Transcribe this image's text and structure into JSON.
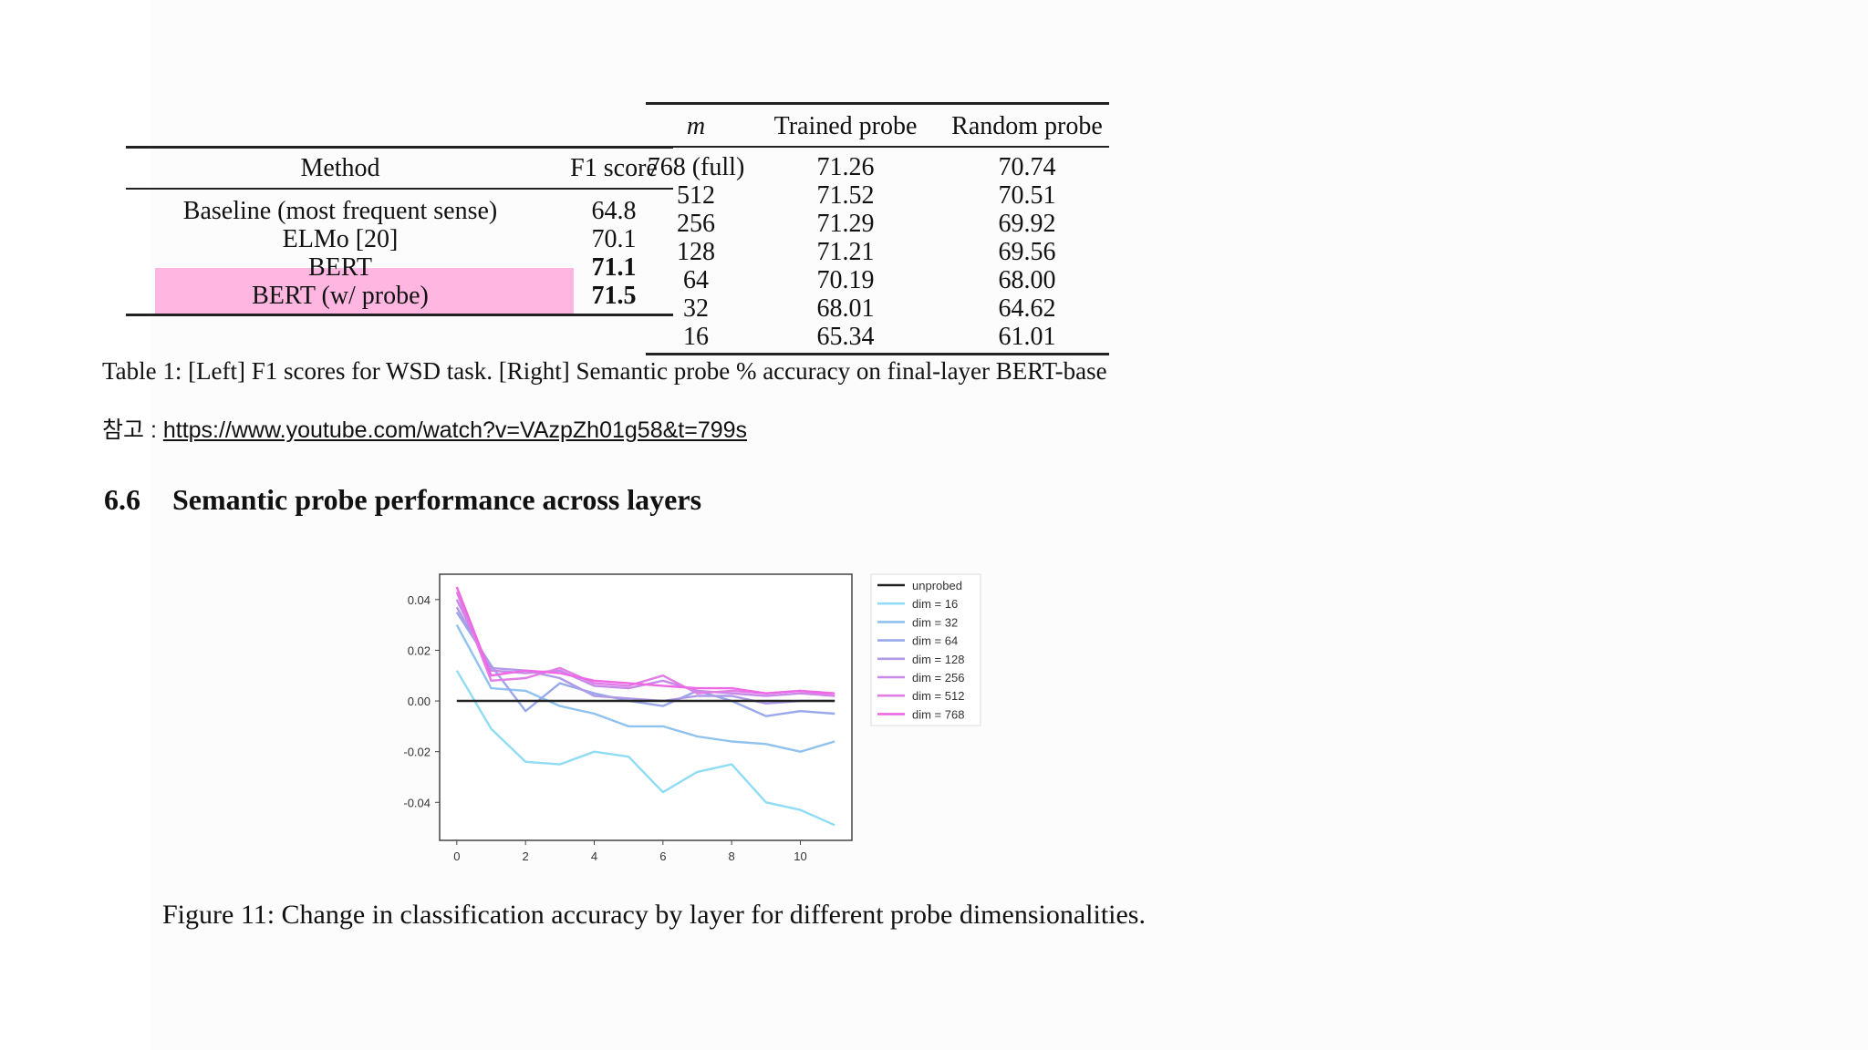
{
  "left_table": {
    "headers": [
      "Method",
      "F1 score"
    ],
    "rows": [
      {
        "method": "Baseline (most frequent sense)",
        "f1": "64.8",
        "bold": false
      },
      {
        "method": "ELMo [20]",
        "f1": "70.1",
        "bold": false
      },
      {
        "method": "BERT",
        "f1": "71.1",
        "bold": true
      },
      {
        "method": "BERT (w/ probe)",
        "f1": "71.5",
        "bold": true
      }
    ],
    "highlight_color": "#ffb6e1"
  },
  "right_table": {
    "headers": [
      "m",
      "Trained probe",
      "Random probe"
    ],
    "rows": [
      [
        "768 (full)",
        "71.26",
        "70.74"
      ],
      [
        "512",
        "71.52",
        "70.51"
      ],
      [
        "256",
        "71.29",
        "69.92"
      ],
      [
        "128",
        "71.21",
        "69.56"
      ],
      [
        "64",
        "70.19",
        "68.00"
      ],
      [
        "32",
        "68.01",
        "64.62"
      ],
      [
        "16",
        "65.34",
        "61.01"
      ]
    ]
  },
  "table_caption": "Table 1: [Left] F1 scores for WSD task. [Right] Semantic probe % accuracy on final-layer BERT-base",
  "reference": {
    "label": "참고 : ",
    "url": "https://www.youtube.com/watch?v=VAzpZh01g58&t=799s"
  },
  "section": {
    "number": "6.6",
    "title": "Semantic probe performance across layers"
  },
  "chart_data": {
    "type": "line",
    "title": "",
    "xlabel": "",
    "ylabel": "",
    "x": [
      0,
      1,
      2,
      3,
      4,
      5,
      6,
      7,
      8,
      9,
      10,
      11
    ],
    "xticks": [
      0,
      2,
      4,
      6,
      8,
      10
    ],
    "xtick_labels": [
      "0",
      "2",
      "4",
      "6",
      "8",
      "10"
    ],
    "yticks": [
      -0.04,
      -0.02,
      0.0,
      0.02,
      0.04
    ],
    "ytick_labels": [
      "-0.04",
      "-0.02",
      "0.00",
      "0.02",
      "0.04"
    ],
    "xlim": [
      -0.5,
      11.5
    ],
    "ylim": [
      -0.055,
      0.05
    ],
    "legend_position": "outside-right",
    "series": [
      {
        "name": "unprobed",
        "color": "#222222",
        "values": [
          0,
          0,
          0,
          0,
          0,
          0,
          0,
          0,
          0,
          0,
          0,
          0
        ]
      },
      {
        "name": "dim = 16",
        "color": "#8fdcf4",
        "values": [
          0.012,
          -0.011,
          -0.024,
          -0.025,
          -0.02,
          -0.022,
          -0.036,
          -0.028,
          -0.025,
          -0.04,
          -0.043,
          -0.049
        ]
      },
      {
        "name": "dim = 32",
        "color": "#8fc2ee",
        "values": [
          0.03,
          0.005,
          0.004,
          -0.002,
          -0.005,
          -0.01,
          -0.01,
          -0.014,
          -0.016,
          -0.017,
          -0.02,
          -0.016
        ]
      },
      {
        "name": "dim = 64",
        "color": "#98a8ea",
        "values": [
          0.035,
          0.014,
          -0.004,
          0.007,
          0.003,
          0.0,
          -0.002,
          0.004,
          0.0,
          -0.006,
          -0.004,
          -0.005
        ]
      },
      {
        "name": "dim = 128",
        "color": "#ae9ae8",
        "values": [
          0.037,
          0.013,
          0.012,
          0.009,
          0.002,
          0.001,
          0.0,
          0.002,
          0.002,
          -0.001,
          0.0,
          0.0
        ]
      },
      {
        "name": "dim = 256",
        "color": "#c88ae8",
        "values": [
          0.04,
          0.012,
          0.011,
          0.012,
          0.006,
          0.005,
          0.008,
          0.004,
          0.003,
          0.002,
          0.003,
          0.002
        ]
      },
      {
        "name": "dim = 512",
        "color": "#e07ee6",
        "values": [
          0.043,
          0.008,
          0.009,
          0.013,
          0.007,
          0.006,
          0.01,
          0.003,
          0.004,
          0.003,
          0.004,
          0.002
        ]
      },
      {
        "name": "dim = 768",
        "color": "#ee68e6",
        "values": [
          0.045,
          0.01,
          0.012,
          0.011,
          0.008,
          0.007,
          0.006,
          0.005,
          0.005,
          0.003,
          0.004,
          0.003
        ]
      }
    ]
  },
  "figure_caption": "Figure 11: Change in classification accuracy by layer for different probe dimensionalities."
}
